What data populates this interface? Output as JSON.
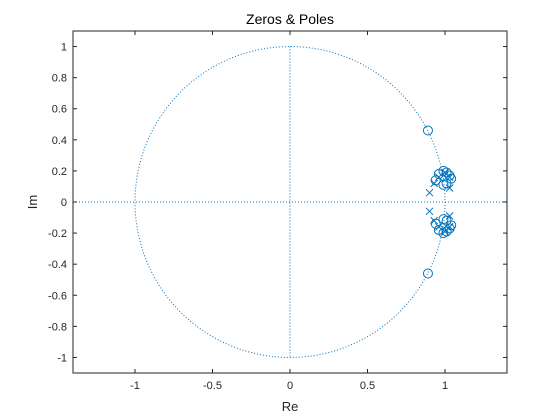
{
  "chart_data": {
    "type": "scatter",
    "title": "Zeros & Poles",
    "xlabel": "Re",
    "ylabel": "Im",
    "xlim": [
      -1.4,
      1.4
    ],
    "ylim": [
      -1.1,
      1.1
    ],
    "xticks": [
      -1,
      -0.5,
      0,
      0.5,
      1
    ],
    "xtick_labels": [
      "-1",
      "-0.5",
      "0",
      "0.5",
      "1"
    ],
    "yticks": [
      1,
      0.8,
      0.6,
      0.4,
      0.2,
      0,
      -0.2,
      -0.4,
      -0.6,
      -0.8,
      -1
    ],
    "ytick_labels": [
      "1",
      "0.8",
      "0.6",
      "0.4",
      "0.2",
      "0",
      "-0.2",
      "-0.4",
      "-0.6",
      "-0.8",
      "-1"
    ],
    "grid": false,
    "unit_circle": true,
    "color": "#0072bd",
    "zeros": [
      {
        "x": 0.89,
        "y": 0.46
      },
      {
        "x": 0.89,
        "y": -0.46
      },
      {
        "x": 0.94,
        "y": 0.14
      },
      {
        "x": 0.94,
        "y": -0.14
      },
      {
        "x": 0.96,
        "y": 0.18
      },
      {
        "x": 0.96,
        "y": -0.18
      },
      {
        "x": 0.99,
        "y": 0.2
      },
      {
        "x": 0.99,
        "y": -0.2
      },
      {
        "x": 1.01,
        "y": 0.19
      },
      {
        "x": 1.01,
        "y": -0.19
      },
      {
        "x": 1.03,
        "y": 0.17
      },
      {
        "x": 1.03,
        "y": -0.17
      },
      {
        "x": 1.04,
        "y": 0.15
      },
      {
        "x": 1.04,
        "y": -0.15
      },
      {
        "x": 0.99,
        "y": 0.11
      },
      {
        "x": 0.99,
        "y": -0.11
      },
      {
        "x": 1.01,
        "y": 0.12
      },
      {
        "x": 1.01,
        "y": -0.12
      }
    ],
    "poles": [
      {
        "x": 0.9,
        "y": 0.06
      },
      {
        "x": 0.9,
        "y": -0.06
      },
      {
        "x": 0.93,
        "y": 0.12
      },
      {
        "x": 0.93,
        "y": -0.12
      },
      {
        "x": 0.96,
        "y": 0.16
      },
      {
        "x": 0.96,
        "y": -0.16
      },
      {
        "x": 1.0,
        "y": 0.19
      },
      {
        "x": 1.0,
        "y": -0.19
      },
      {
        "x": 1.03,
        "y": 0.16
      },
      {
        "x": 1.03,
        "y": -0.16
      },
      {
        "x": 1.03,
        "y": 0.09
      },
      {
        "x": 1.03,
        "y": -0.09
      }
    ]
  }
}
